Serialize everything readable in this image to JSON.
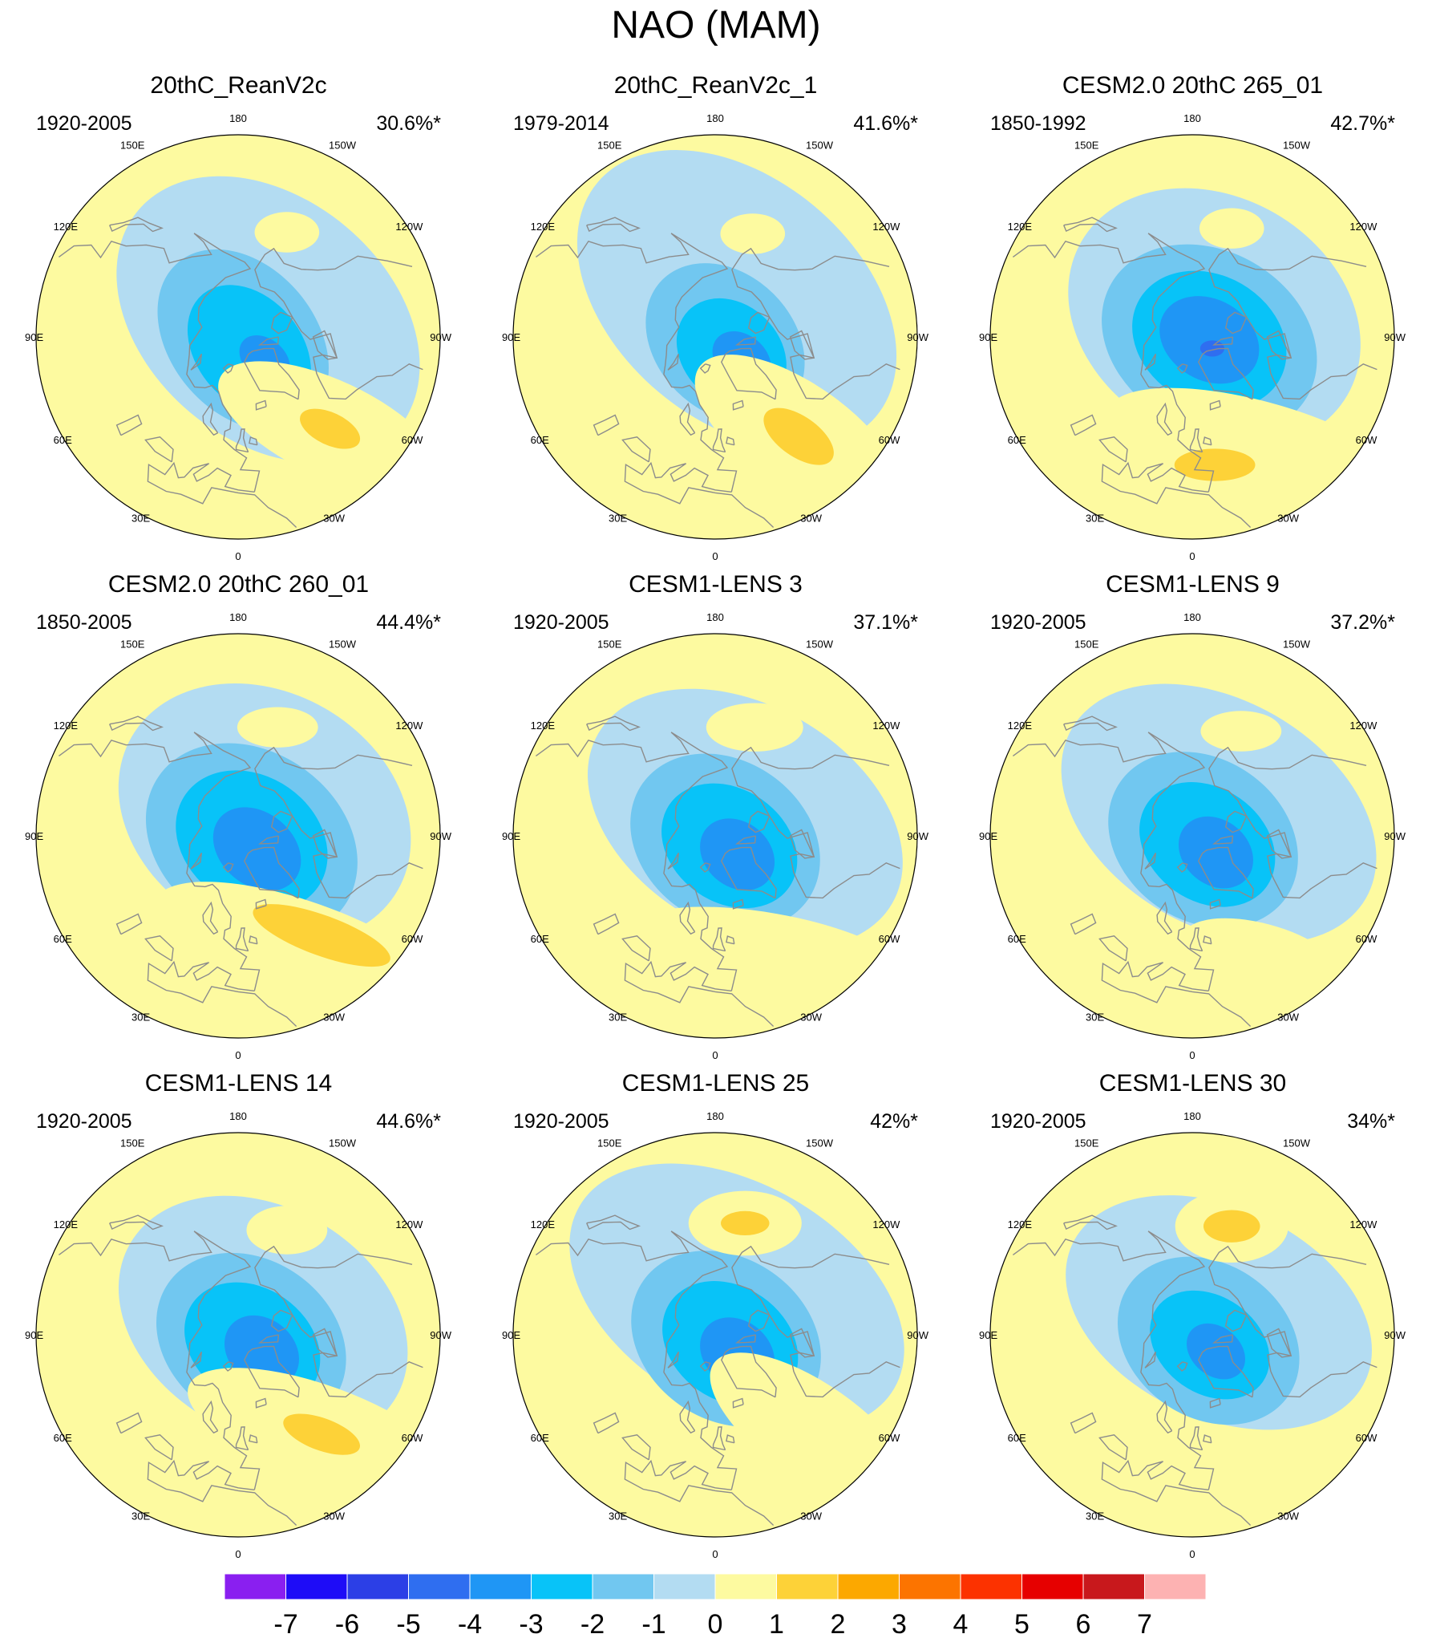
{
  "figure": {
    "title": "NAO (MAM)"
  },
  "colors": {
    "ocean": "#fdfaa0",
    "coast": "#8c8c8c",
    "levels": [
      "#8a1ff0",
      "#1e0cf7",
      "#2c3fe6",
      "#2f6ef0",
      "#1f96f5",
      "#08c3f8",
      "#71c7f0",
      "#b3dcf2",
      "#fdfaa0",
      "#fdd238",
      "#fca800",
      "#fc7400",
      "#fc3200",
      "#e60000",
      "#c8181c",
      "#fdb2b2"
    ]
  },
  "longitude_labels": [
    "180",
    "150E",
    "120E",
    "90E",
    "60E",
    "30E",
    "0",
    "30W",
    "60W",
    "90W",
    "120W",
    "150W"
  ],
  "panels": [
    {
      "title": "20thC_ReanV2c",
      "period": "1920-2005",
      "variance": "30.6%*",
      "features": [
        {
          "kind": "neg",
          "lat": 78,
          "lon": -120,
          "rx": 0.42,
          "ry": 0.3,
          "rot": 40,
          "level": -1
        },
        {
          "kind": "neg",
          "lat": 88,
          "lon": -60,
          "rx": 0.25,
          "ry": 0.18,
          "rot": 50,
          "level": -2
        },
        {
          "kind": "neg",
          "lat": 84,
          "lon": -40,
          "rx": 0.18,
          "ry": 0.13,
          "rot": 50,
          "level": -3
        },
        {
          "kind": "neg",
          "lat": 78,
          "lon": -50,
          "rx": 0.07,
          "ry": 0.05,
          "rot": 40,
          "level": -4
        },
        {
          "kind": "pos",
          "lat": 45,
          "lon": -45,
          "rx": 0.3,
          "ry": 0.12,
          "rot": 25,
          "level": 1
        },
        {
          "kind": "pos",
          "lat": 45,
          "lon": -45,
          "rx": 0.08,
          "ry": 0.04,
          "rot": 25,
          "level": 2
        },
        {
          "kind": "pos",
          "lat": 50,
          "lon": -155,
          "rx": 0.08,
          "ry": 0.05,
          "rot": 0,
          "level": 1
        }
      ]
    },
    {
      "title": "20thC_ReanV2c_1",
      "period": "1979-2014",
      "variance": "41.6%*",
      "features": [
        {
          "kind": "neg",
          "lat": 75,
          "lon": -150,
          "rx": 0.45,
          "ry": 0.3,
          "rot": 40,
          "level": -1
        },
        {
          "kind": "neg",
          "lat": 86,
          "lon": -60,
          "rx": 0.22,
          "ry": 0.17,
          "rot": 45,
          "level": -2
        },
        {
          "kind": "neg",
          "lat": 82,
          "lon": -45,
          "rx": 0.15,
          "ry": 0.12,
          "rot": 45,
          "level": -3
        },
        {
          "kind": "neg",
          "lat": 78,
          "lon": -50,
          "rx": 0.08,
          "ry": 0.06,
          "rot": 40,
          "level": -4
        },
        {
          "kind": "pos",
          "lat": 45,
          "lon": -40,
          "rx": 0.3,
          "ry": 0.13,
          "rot": 35,
          "level": 1
        },
        {
          "kind": "pos",
          "lat": 45,
          "lon": -40,
          "rx": 0.1,
          "ry": 0.05,
          "rot": 35,
          "level": 2
        },
        {
          "kind": "pos",
          "lat": 52,
          "lon": -160,
          "rx": 0.08,
          "ry": 0.05,
          "rot": 0,
          "level": 1
        }
      ]
    },
    {
      "title": "CESM2.0 20thC 265_01",
      "period": "1850-1992",
      "variance": "42.7%*",
      "features": [
        {
          "kind": "neg",
          "lat": 80,
          "lon": -130,
          "rx": 0.38,
          "ry": 0.3,
          "rot": 30,
          "level": -1
        },
        {
          "kind": "neg",
          "lat": 84,
          "lon": -80,
          "rx": 0.28,
          "ry": 0.22,
          "rot": 30,
          "level": -2
        },
        {
          "kind": "neg",
          "lat": 84,
          "lon": -80,
          "rx": 0.2,
          "ry": 0.16,
          "rot": 30,
          "level": -3
        },
        {
          "kind": "neg",
          "lat": 84,
          "lon": -80,
          "rx": 0.13,
          "ry": 0.1,
          "rot": 30,
          "level": -4
        },
        {
          "kind": "neg",
          "lat": 82,
          "lon": -60,
          "rx": 0.03,
          "ry": 0.02,
          "rot": 0,
          "level": -5
        },
        {
          "kind": "pos",
          "lat": 45,
          "lon": -30,
          "rx": 0.38,
          "ry": 0.12,
          "rot": 15,
          "level": 1
        },
        {
          "kind": "pos",
          "lat": 45,
          "lon": -10,
          "rx": 0.1,
          "ry": 0.04,
          "rot": 0,
          "level": 2
        },
        {
          "kind": "pos",
          "lat": 50,
          "lon": -160,
          "rx": 0.08,
          "ry": 0.05,
          "rot": 0,
          "level": 1
        }
      ]
    },
    {
      "title": "CESM2.0 20thC 260_01",
      "period": "1850-2005",
      "variance": "44.4%*",
      "features": [
        {
          "kind": "neg",
          "lat": 78,
          "lon": -130,
          "rx": 0.38,
          "ry": 0.3,
          "rot": 30,
          "level": -1
        },
        {
          "kind": "neg",
          "lat": 85,
          "lon": -70,
          "rx": 0.28,
          "ry": 0.22,
          "rot": 35,
          "level": -2
        },
        {
          "kind": "neg",
          "lat": 85,
          "lon": -70,
          "rx": 0.2,
          "ry": 0.16,
          "rot": 35,
          "level": -3
        },
        {
          "kind": "neg",
          "lat": 82,
          "lon": -55,
          "rx": 0.12,
          "ry": 0.09,
          "rot": 40,
          "level": -4
        },
        {
          "kind": "pos",
          "lat": 42,
          "lon": -30,
          "rx": 0.4,
          "ry": 0.13,
          "rot": 20,
          "level": 1
        },
        {
          "kind": "pos",
          "lat": 45,
          "lon": -40,
          "rx": 0.18,
          "ry": 0.05,
          "rot": 20,
          "level": 2
        },
        {
          "kind": "pos",
          "lat": 50,
          "lon": -160,
          "rx": 0.1,
          "ry": 0.05,
          "rot": 0,
          "level": 1
        }
      ]
    },
    {
      "title": "CESM1-LENS 3",
      "period": "1920-2005",
      "variance": "37.1%*",
      "features": [
        {
          "kind": "neg",
          "lat": 78,
          "lon": -120,
          "rx": 0.42,
          "ry": 0.28,
          "rot": 30,
          "level": -1
        },
        {
          "kind": "neg",
          "lat": 86,
          "lon": -60,
          "rx": 0.25,
          "ry": 0.2,
          "rot": 35,
          "level": -2
        },
        {
          "kind": "neg",
          "lat": 84,
          "lon": -55,
          "rx": 0.18,
          "ry": 0.14,
          "rot": 35,
          "level": -3
        },
        {
          "kind": "neg",
          "lat": 80,
          "lon": -50,
          "rx": 0.1,
          "ry": 0.08,
          "rot": 40,
          "level": -4
        },
        {
          "kind": "pos",
          "lat": 45,
          "lon": -25,
          "rx": 0.35,
          "ry": 0.1,
          "rot": 10,
          "level": 1
        },
        {
          "kind": "pos",
          "lat": 50,
          "lon": -160,
          "rx": 0.12,
          "ry": 0.06,
          "rot": 0,
          "level": 1
        }
      ]
    },
    {
      "title": "CESM1-LENS 9",
      "period": "1920-2005",
      "variance": "37.2%*",
      "features": [
        {
          "kind": "neg",
          "lat": 78,
          "lon": -130,
          "rx": 0.42,
          "ry": 0.28,
          "rot": 30,
          "level": -1
        },
        {
          "kind": "neg",
          "lat": 86,
          "lon": -70,
          "rx": 0.25,
          "ry": 0.2,
          "rot": 35,
          "level": -2
        },
        {
          "kind": "neg",
          "lat": 84,
          "lon": -60,
          "rx": 0.18,
          "ry": 0.14,
          "rot": 35,
          "level": -3
        },
        {
          "kind": "neg",
          "lat": 80,
          "lon": -55,
          "rx": 0.1,
          "ry": 0.08,
          "rot": 40,
          "level": -4
        },
        {
          "kind": "pos",
          "lat": 42,
          "lon": -30,
          "rx": 0.2,
          "ry": 0.08,
          "rot": 15,
          "level": 1
        },
        {
          "kind": "pos",
          "lat": 50,
          "lon": -155,
          "rx": 0.1,
          "ry": 0.05,
          "rot": 0,
          "level": 1
        }
      ]
    },
    {
      "title": "CESM1-LENS 14",
      "period": "1920-2005",
      "variance": "44.6%*",
      "features": [
        {
          "kind": "neg",
          "lat": 80,
          "lon": -120,
          "rx": 0.38,
          "ry": 0.28,
          "rot": 30,
          "level": -1
        },
        {
          "kind": "neg",
          "lat": 85,
          "lon": -65,
          "rx": 0.25,
          "ry": 0.2,
          "rot": 35,
          "level": -2
        },
        {
          "kind": "neg",
          "lat": 84,
          "lon": -55,
          "rx": 0.18,
          "ry": 0.14,
          "rot": 35,
          "level": -3
        },
        {
          "kind": "neg",
          "lat": 80,
          "lon": -55,
          "rx": 0.1,
          "ry": 0.08,
          "rot": 40,
          "level": -4
        },
        {
          "kind": "pos",
          "lat": 45,
          "lon": -40,
          "rx": 0.35,
          "ry": 0.12,
          "rot": 20,
          "level": 1
        },
        {
          "kind": "pos",
          "lat": 45,
          "lon": -40,
          "rx": 0.1,
          "ry": 0.04,
          "rot": 20,
          "level": 2
        },
        {
          "kind": "pos",
          "lat": 50,
          "lon": -155,
          "rx": 0.1,
          "ry": 0.06,
          "rot": 0,
          "level": 1
        }
      ]
    },
    {
      "title": "CESM1-LENS 25",
      "period": "1920-2005",
      "variance": "42%*",
      "features": [
        {
          "kind": "neg",
          "lat": 75,
          "lon": -150,
          "rx": 0.45,
          "ry": 0.28,
          "rot": 30,
          "level": -1
        },
        {
          "kind": "neg",
          "lat": 86,
          "lon": -70,
          "rx": 0.25,
          "ry": 0.2,
          "rot": 35,
          "level": -2
        },
        {
          "kind": "neg",
          "lat": 84,
          "lon": -60,
          "rx": 0.18,
          "ry": 0.14,
          "rot": 35,
          "level": -3
        },
        {
          "kind": "neg",
          "lat": 80,
          "lon": -50,
          "rx": 0.1,
          "ry": 0.08,
          "rot": 40,
          "level": -4
        },
        {
          "kind": "pos",
          "lat": 42,
          "lon": -45,
          "rx": 0.3,
          "ry": 0.12,
          "rot": 35,
          "level": 1
        },
        {
          "kind": "pos",
          "lat": 50,
          "lon": -165,
          "rx": 0.14,
          "ry": 0.08,
          "rot": 0,
          "level": 1
        },
        {
          "kind": "pos",
          "lat": 50,
          "lon": -165,
          "rx": 0.06,
          "ry": 0.03,
          "rot": 0,
          "level": 2
        }
      ]
    },
    {
      "title": "CESM1-LENS 30",
      "period": "1920-2005",
      "variance": "34%*",
      "features": [
        {
          "kind": "neg",
          "lat": 78,
          "lon": -130,
          "rx": 0.4,
          "ry": 0.26,
          "rot": 25,
          "level": -1
        },
        {
          "kind": "neg",
          "lat": 84,
          "lon": -70,
          "rx": 0.24,
          "ry": 0.19,
          "rot": 35,
          "level": -2
        },
        {
          "kind": "neg",
          "lat": 83,
          "lon": -60,
          "rx": 0.16,
          "ry": 0.12,
          "rot": 35,
          "level": -3
        },
        {
          "kind": "neg",
          "lat": 80,
          "lon": -55,
          "rx": 0.08,
          "ry": 0.06,
          "rot": 40,
          "level": -4
        },
        {
          "kind": "pos",
          "lat": 50,
          "lon": -160,
          "rx": 0.14,
          "ry": 0.09,
          "rot": 0,
          "level": 1
        },
        {
          "kind": "pos",
          "lat": 50,
          "lon": -160,
          "rx": 0.07,
          "ry": 0.04,
          "rot": 0,
          "level": 2
        }
      ]
    }
  ],
  "colorbar": {
    "labels": [
      "-7",
      "-6",
      "-5",
      "-4",
      "-3",
      "-2",
      "-1",
      "0",
      "1",
      "2",
      "3",
      "4",
      "5",
      "6",
      "7"
    ]
  }
}
